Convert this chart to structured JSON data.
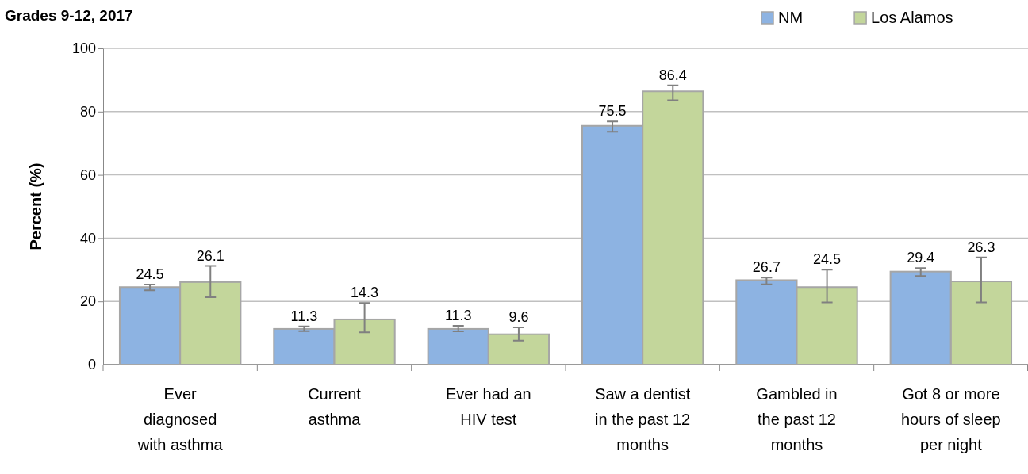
{
  "chart_data": {
    "type": "bar",
    "title": "Grades 9-12, 2017",
    "ylabel": "Percent (%)",
    "categories": [
      "Ever diagnosed with asthma",
      "Current asthma",
      "Ever had an HIV test",
      "Saw a dentist in the past 12 months",
      "Gambled in the past 12 months",
      "Got 8 or more hours of sleep per night"
    ],
    "series": [
      {
        "name": "NM",
        "color": "#8db3e2",
        "values": [
          24.5,
          11.3,
          11.3,
          75.5,
          26.7,
          29.4
        ],
        "errors": [
          [
            23.5,
            25.3
          ],
          [
            10.6,
            12.1
          ],
          [
            10.5,
            12.3
          ],
          [
            73.6,
            76.9
          ],
          [
            25.4,
            27.5
          ],
          [
            28.0,
            30.5
          ]
        ]
      },
      {
        "name": "Los Alamos",
        "color": "#c3d69b",
        "values": [
          26.1,
          14.3,
          9.6,
          86.4,
          24.5,
          26.3
        ],
        "errors": [
          [
            21.3,
            31.2
          ],
          [
            10.2,
            19.5
          ],
          [
            7.6,
            11.8
          ],
          [
            83.6,
            88.3
          ],
          [
            19.7,
            30.0
          ],
          [
            19.7,
            33.9
          ]
        ]
      }
    ],
    "ylim": [
      0,
      100
    ],
    "yticks": [
      0,
      20,
      40,
      60,
      80,
      100
    ],
    "grid": "y",
    "legend": "top right",
    "data_labels": true
  }
}
